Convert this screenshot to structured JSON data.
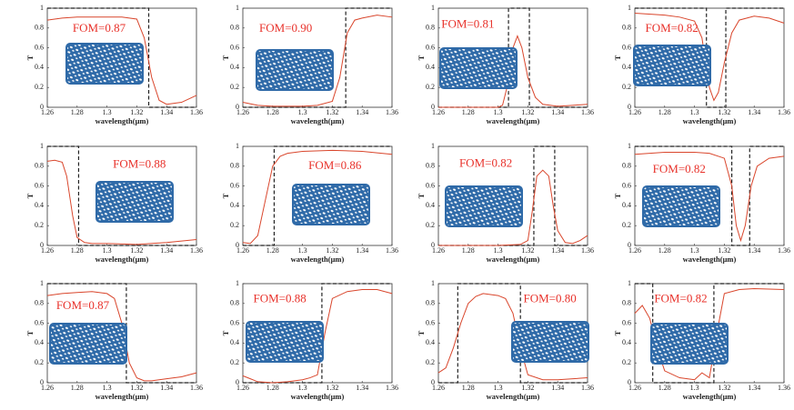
{
  "chart_data": [
    {
      "type": "line",
      "xlabel": "wavelength(μm)",
      "ylabel": "T",
      "annotation": "FOM=0.87",
      "color": "#d9462c",
      "target_color": "#222",
      "x": [
        1.26,
        1.27,
        1.28,
        1.29,
        1.3,
        1.31,
        1.32,
        1.325,
        1.33,
        1.335,
        1.34,
        1.35,
        1.36
      ],
      "values": [
        0.88,
        0.9,
        0.91,
        0.91,
        0.91,
        0.91,
        0.89,
        0.7,
        0.3,
        0.07,
        0.03,
        0.05,
        0.12
      ],
      "target": {
        "x": [
          1.26,
          1.328,
          1.328,
          1.36
        ],
        "values": [
          1,
          1,
          0,
          0
        ]
      },
      "xlim": [
        1.26,
        1.36
      ],
      "ylim": [
        0,
        1
      ],
      "xticks": [
        1.26,
        1.28,
        1.3,
        1.32,
        1.34,
        1.36
      ],
      "yticks": [
        0,
        0.2,
        0.4,
        0.6,
        0.8,
        1
      ]
    },
    {
      "type": "line",
      "xlabel": "wavelength(μm)",
      "ylabel": "T",
      "annotation": "FOM=0.90",
      "color": "#d9462c",
      "target_color": "#222",
      "x": [
        1.26,
        1.27,
        1.28,
        1.29,
        1.3,
        1.31,
        1.32,
        1.325,
        1.33,
        1.335,
        1.34,
        1.35,
        1.36
      ],
      "values": [
        0.05,
        0.02,
        0.01,
        0.01,
        0.01,
        0.02,
        0.06,
        0.3,
        0.75,
        0.88,
        0.9,
        0.93,
        0.91
      ],
      "target": {
        "x": [
          1.26,
          1.329,
          1.329,
          1.36
        ],
        "values": [
          0,
          0,
          1,
          1
        ]
      },
      "xlim": [
        1.26,
        1.36
      ],
      "ylim": [
        0,
        1
      ],
      "xticks": [
        1.26,
        1.28,
        1.3,
        1.32,
        1.34,
        1.36
      ],
      "yticks": [
        0,
        0.2,
        0.4,
        0.6,
        0.8,
        1
      ]
    },
    {
      "type": "line",
      "xlabel": "wavelength(μm)",
      "ylabel": "T",
      "annotation": "FOM=0.81",
      "color": "#d9462c",
      "target_color": "#222",
      "x": [
        1.26,
        1.28,
        1.3,
        1.303,
        1.306,
        1.31,
        1.313,
        1.316,
        1.32,
        1.325,
        1.33,
        1.34,
        1.35,
        1.36
      ],
      "values": [
        0,
        0,
        0,
        0.02,
        0.2,
        0.6,
        0.72,
        0.6,
        0.3,
        0.1,
        0.03,
        0.01,
        0.02,
        0.03
      ],
      "target": {
        "x": [
          1.26,
          1.307,
          1.307,
          1.321,
          1.321,
          1.36
        ],
        "values": [
          0,
          0,
          1,
          1,
          0,
          0
        ]
      },
      "xlim": [
        1.26,
        1.36
      ],
      "ylim": [
        0,
        1
      ],
      "xticks": [
        1.26,
        1.28,
        1.3,
        1.32,
        1.34,
        1.36
      ],
      "yticks": [
        0,
        0.2,
        0.4,
        0.6,
        0.8,
        1
      ]
    },
    {
      "type": "line",
      "xlabel": "wavelength(μm)",
      "ylabel": "T",
      "annotation": "FOM=0.82",
      "color": "#d9462c",
      "target_color": "#222",
      "x": [
        1.26,
        1.28,
        1.29,
        1.3,
        1.305,
        1.31,
        1.313,
        1.316,
        1.32,
        1.325,
        1.33,
        1.34,
        1.35,
        1.36
      ],
      "values": [
        0.95,
        0.93,
        0.91,
        0.87,
        0.7,
        0.2,
        0.07,
        0.15,
        0.45,
        0.75,
        0.88,
        0.92,
        0.9,
        0.85
      ],
      "target": {
        "x": [
          1.26,
          1.308,
          1.308,
          1.321,
          1.321,
          1.36
        ],
        "values": [
          1,
          1,
          0,
          0,
          1,
          1
        ]
      },
      "xlim": [
        1.26,
        1.36
      ],
      "ylim": [
        0,
        1
      ],
      "xticks": [
        1.26,
        1.28,
        1.3,
        1.32,
        1.34,
        1.36
      ],
      "yticks": [
        0,
        0.2,
        0.4,
        0.6,
        0.8,
        1
      ]
    },
    {
      "type": "line",
      "xlabel": "wavelength(μm)",
      "ylabel": "T",
      "annotation": "FOM=0.88",
      "color": "#d9462c",
      "target_color": "#222",
      "x": [
        1.26,
        1.265,
        1.27,
        1.273,
        1.277,
        1.28,
        1.285,
        1.29,
        1.3,
        1.32,
        1.34,
        1.36
      ],
      "values": [
        0.85,
        0.86,
        0.84,
        0.7,
        0.3,
        0.08,
        0.03,
        0.02,
        0.02,
        0.01,
        0.03,
        0.06
      ],
      "target": {
        "x": [
          1.26,
          1.281,
          1.281,
          1.36
        ],
        "values": [
          1,
          1,
          0,
          0
        ]
      },
      "xlim": [
        1.26,
        1.36
      ],
      "ylim": [
        0,
        1
      ],
      "xticks": [
        1.26,
        1.28,
        1.3,
        1.32,
        1.34,
        1.36
      ],
      "yticks": [
        0,
        0.2,
        0.4,
        0.6,
        0.8,
        1
      ]
    },
    {
      "type": "line",
      "xlabel": "wavelength(μm)",
      "ylabel": "T",
      "annotation": "FOM=0.86",
      "color": "#d9462c",
      "target_color": "#222",
      "x": [
        1.26,
        1.265,
        1.27,
        1.275,
        1.28,
        1.285,
        1.29,
        1.3,
        1.32,
        1.34,
        1.36
      ],
      "values": [
        0.03,
        0.02,
        0.1,
        0.45,
        0.8,
        0.9,
        0.93,
        0.95,
        0.96,
        0.95,
        0.92
      ],
      "target": {
        "x": [
          1.26,
          1.281,
          1.281,
          1.36
        ],
        "values": [
          0,
          0,
          1,
          1
        ]
      },
      "xlim": [
        1.26,
        1.36
      ],
      "ylim": [
        0,
        1
      ],
      "xticks": [
        1.26,
        1.28,
        1.3,
        1.32,
        1.34,
        1.36
      ],
      "yticks": [
        0,
        0.2,
        0.4,
        0.6,
        0.8,
        1
      ]
    },
    {
      "type": "line",
      "xlabel": "wavelength(μm)",
      "ylabel": "T",
      "annotation": "FOM=0.82",
      "color": "#d9462c",
      "target_color": "#222",
      "x": [
        1.26,
        1.3,
        1.315,
        1.32,
        1.323,
        1.326,
        1.33,
        1.334,
        1.337,
        1.34,
        1.345,
        1.35,
        1.355,
        1.36
      ],
      "values": [
        0,
        0,
        0.01,
        0.05,
        0.35,
        0.7,
        0.76,
        0.7,
        0.4,
        0.15,
        0.03,
        0.02,
        0.05,
        0.1
      ],
      "target": {
        "x": [
          1.26,
          1.324,
          1.324,
          1.338,
          1.338,
          1.36
        ],
        "values": [
          0,
          0,
          1,
          1,
          0,
          0
        ]
      },
      "xlim": [
        1.26,
        1.36
      ],
      "ylim": [
        0,
        1
      ],
      "xticks": [
        1.26,
        1.28,
        1.3,
        1.32,
        1.34,
        1.36
      ],
      "yticks": [
        0,
        0.2,
        0.4,
        0.6,
        0.8,
        1
      ]
    },
    {
      "type": "line",
      "xlabel": "wavelength(μm)",
      "ylabel": "T",
      "annotation": "FOM=0.82",
      "color": "#d9462c",
      "target_color": "#222",
      "x": [
        1.26,
        1.28,
        1.3,
        1.31,
        1.32,
        1.325,
        1.328,
        1.331,
        1.334,
        1.338,
        1.342,
        1.35,
        1.36
      ],
      "values": [
        0.92,
        0.94,
        0.94,
        0.93,
        0.88,
        0.6,
        0.2,
        0.05,
        0.2,
        0.6,
        0.8,
        0.88,
        0.9
      ],
      "target": {
        "x": [
          1.26,
          1.325,
          1.325,
          1.337,
          1.337,
          1.36
        ],
        "values": [
          1,
          1,
          0,
          0,
          1,
          1
        ]
      },
      "xlim": [
        1.26,
        1.36
      ],
      "ylim": [
        0,
        1
      ],
      "xticks": [
        1.26,
        1.28,
        1.3,
        1.32,
        1.34,
        1.36
      ],
      "yticks": [
        0,
        0.2,
        0.4,
        0.6,
        0.8,
        1
      ]
    },
    {
      "type": "line",
      "xlabel": "wavelength(μm)",
      "ylabel": "T",
      "annotation": "FOM=0.87",
      "color": "#d9462c",
      "target_color": "#222",
      "x": [
        1.26,
        1.27,
        1.28,
        1.29,
        1.3,
        1.305,
        1.31,
        1.315,
        1.32,
        1.325,
        1.33,
        1.34,
        1.35,
        1.36
      ],
      "values": [
        0.88,
        0.9,
        0.91,
        0.92,
        0.9,
        0.85,
        0.6,
        0.2,
        0.05,
        0.02,
        0.02,
        0.04,
        0.06,
        0.1
      ],
      "target": {
        "x": [
          1.26,
          1.313,
          1.313,
          1.36
        ],
        "values": [
          1,
          1,
          0,
          0
        ]
      },
      "xlim": [
        1.26,
        1.36
      ],
      "ylim": [
        0,
        1
      ],
      "xticks": [
        1.26,
        1.28,
        1.3,
        1.32,
        1.34,
        1.36
      ],
      "yticks": [
        0,
        0.2,
        0.4,
        0.6,
        0.8,
        1
      ]
    },
    {
      "type": "line",
      "xlabel": "wavelength(μm)",
      "ylabel": "T",
      "annotation": "FOM=0.88",
      "color": "#d9462c",
      "target_color": "#222",
      "x": [
        1.26,
        1.265,
        1.27,
        1.28,
        1.29,
        1.3,
        1.305,
        1.31,
        1.315,
        1.32,
        1.33,
        1.34,
        1.35,
        1.36
      ],
      "values": [
        0.07,
        0.04,
        0.01,
        0,
        0.01,
        0.03,
        0.05,
        0.08,
        0.5,
        0.85,
        0.92,
        0.94,
        0.94,
        0.9
      ],
      "target": {
        "x": [
          1.26,
          1.313,
          1.313,
          1.36
        ],
        "values": [
          0,
          0,
          1,
          1
        ]
      },
      "xlim": [
        1.26,
        1.36
      ],
      "ylim": [
        0,
        1
      ],
      "xticks": [
        1.26,
        1.28,
        1.3,
        1.32,
        1.34,
        1.36
      ],
      "yticks": [
        0,
        0.2,
        0.4,
        0.6,
        0.8,
        1
      ]
    },
    {
      "type": "line",
      "xlabel": "wavelength(μm)",
      "ylabel": "T",
      "annotation": "FOM=0.80",
      "color": "#d9462c",
      "target_color": "#222",
      "x": [
        1.26,
        1.265,
        1.27,
        1.275,
        1.28,
        1.285,
        1.29,
        1.3,
        1.305,
        1.31,
        1.315,
        1.32,
        1.33,
        1.34,
        1.36
      ],
      "values": [
        0.1,
        0.15,
        0.35,
        0.6,
        0.8,
        0.87,
        0.9,
        0.88,
        0.85,
        0.7,
        0.35,
        0.08,
        0.03,
        0.03,
        0.05
      ],
      "target": {
        "x": [
          1.26,
          1.273,
          1.273,
          1.315,
          1.315,
          1.36
        ],
        "values": [
          0,
          0,
          1,
          1,
          0,
          0
        ]
      },
      "xlim": [
        1.26,
        1.36
      ],
      "ylim": [
        0,
        1
      ],
      "xticks": [
        1.26,
        1.28,
        1.3,
        1.32,
        1.34,
        1.36
      ],
      "yticks": [
        0,
        0.2,
        0.4,
        0.6,
        0.8,
        1
      ]
    },
    {
      "type": "line",
      "xlabel": "wavelength(μm)",
      "ylabel": "T",
      "annotation": "FOM=0.82",
      "color": "#d9462c",
      "target_color": "#222",
      "x": [
        1.26,
        1.265,
        1.27,
        1.275,
        1.28,
        1.29,
        1.3,
        1.305,
        1.31,
        1.315,
        1.32,
        1.33,
        1.34,
        1.36
      ],
      "values": [
        0.7,
        0.78,
        0.65,
        0.35,
        0.12,
        0.05,
        0.03,
        0.1,
        0.05,
        0.5,
        0.9,
        0.94,
        0.95,
        0.94
      ],
      "target": {
        "x": [
          1.26,
          1.272,
          1.272,
          1.313,
          1.313,
          1.36
        ],
        "values": [
          1,
          1,
          0,
          0,
          1,
          1
        ]
      },
      "xlim": [
        1.26,
        1.36
      ],
      "ylim": [
        0,
        1
      ],
      "xticks": [
        1.26,
        1.28,
        1.3,
        1.32,
        1.34,
        1.36
      ],
      "yticks": [
        0,
        0.2,
        0.4,
        0.6,
        0.8,
        1
      ]
    }
  ]
}
